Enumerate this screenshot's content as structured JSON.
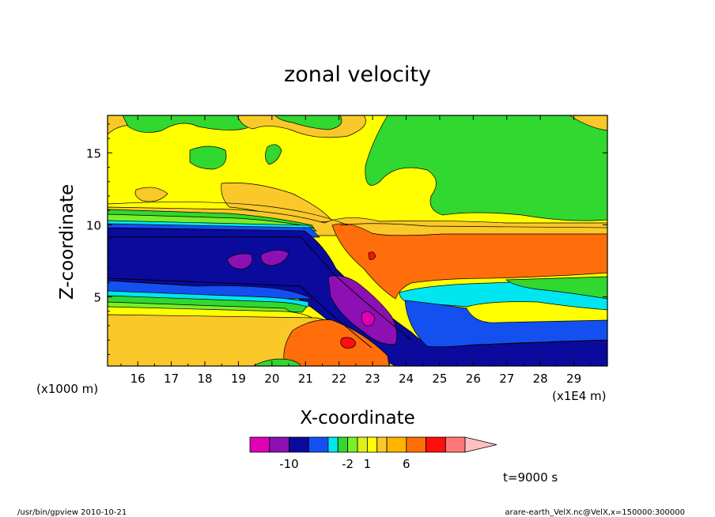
{
  "chart_data": {
    "type": "heatmap",
    "title": "zonal velocity",
    "xlabel": "X-coordinate",
    "ylabel": "Z-coordinate",
    "x_unit": "(x1E4 m)",
    "y_unit": "(x1000 m)",
    "xlim": [
      15.1,
      30.0
    ],
    "ylim": [
      0.2,
      17.6
    ],
    "x_ticks": [
      16,
      17,
      18,
      19,
      20,
      21,
      22,
      23,
      24,
      25,
      26,
      27,
      28,
      29
    ],
    "y_ticks": [
      5,
      10,
      15
    ],
    "colorbar": {
      "colors": [
        "#e000b4",
        "#8c10b4",
        "#0a0a9c",
        "#1450f0",
        "#00e6f0",
        "#30d830",
        "#78f028",
        "#ddf018",
        "#ffff00",
        "#fac828",
        "#ffb400",
        "#ff6e0a",
        "#ff0e0e",
        "#ff7878"
      ],
      "extend_color": "#ffc0c0",
      "labels": [
        {
          "text": "-10",
          "boundary": 2
        },
        {
          "text": "-2",
          "boundary": 6
        },
        {
          "text": "1",
          "boundary": 8
        },
        {
          "text": "6",
          "boundary": 11
        }
      ]
    },
    "time_label": "t=9000 s"
  },
  "footer": {
    "left": "/usr/bin/gpview  2010-10-21",
    "right": "arare-earth_VelX.nc@VelX,x=150000:300000"
  }
}
